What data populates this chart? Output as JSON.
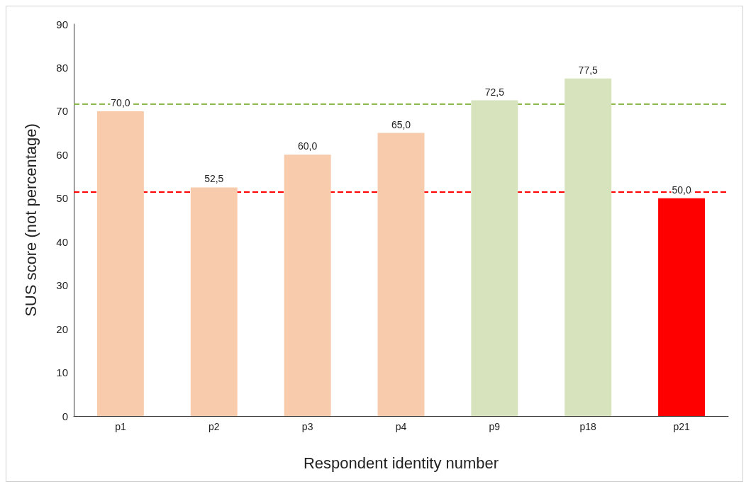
{
  "chart_data": {
    "type": "bar",
    "xlabel": "Respondent identity number",
    "ylabel": "SUS score (not percentage)",
    "categories": [
      "p1",
      "p2",
      "p3",
      "p4",
      "p9",
      "p18",
      "p21"
    ],
    "values": [
      70.0,
      52.5,
      60.0,
      65.0,
      72.5,
      77.5,
      50.0
    ],
    "value_labels": [
      "70,0",
      "52,5",
      "60,0",
      "65,0",
      "72,5",
      "77,5",
      "50,0"
    ],
    "colors": [
      "#f8cbad",
      "#f8cbad",
      "#f8cbad",
      "#f8cbad",
      "#d6e3bd",
      "#d6e3bd",
      "#ff0000"
    ],
    "ylim": [
      0,
      90
    ],
    "yticks": [
      0,
      10,
      20,
      30,
      40,
      50,
      60,
      70,
      80,
      90
    ],
    "grid": false,
    "ref_lines": [
      {
        "axis": "y",
        "value": 71.6,
        "color": "#8db84a",
        "line_style": "dashed"
      },
      {
        "axis": "y",
        "value": 51.5,
        "color": "#ff0000",
        "line_style": "dashed"
      }
    ]
  }
}
